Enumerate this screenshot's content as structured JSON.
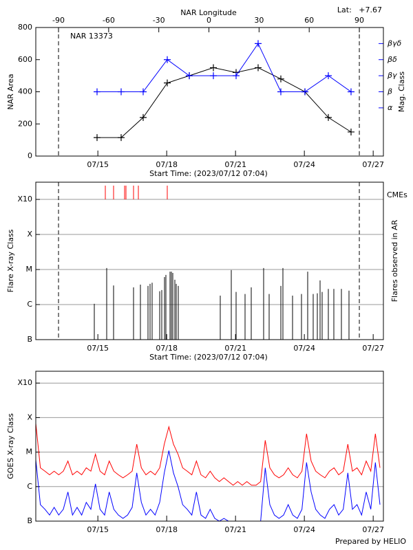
{
  "chart_data": [
    {
      "type": "line",
      "title": "NAR 13373",
      "annotation": "Lat:   +7.67",
      "xlabel": "Start Time: (2023/07/12 07:04)",
      "ylabel": "NAR Area",
      "y2label": "Mag. Class",
      "x2label": "NAR Longitude",
      "xlim": [
        0,
        15.15
      ],
      "xticks": [
        {
          "value": 2.705,
          "label": "07/15"
        },
        {
          "value": 5.705,
          "label": "07/18"
        },
        {
          "value": 8.705,
          "label": "07/21"
        },
        {
          "value": 11.705,
          "label": "07/24"
        },
        {
          "value": 14.705,
          "label": "07/27"
        }
      ],
      "x2lim": [
        -103.6,
        104.4
      ],
      "x2ticks": [
        -90,
        -60,
        -30,
        0,
        30,
        60,
        90
      ],
      "ylim": [
        0,
        800
      ],
      "yticks": [
        0,
        200,
        400,
        600,
        800
      ],
      "y2lim": [
        -2,
        6
      ],
      "y2ticks": [
        {
          "value": 1,
          "label": "α"
        },
        {
          "value": 2,
          "label": "β"
        },
        {
          "value": 3,
          "label": "βγ"
        },
        {
          "value": 4,
          "label": "βδ"
        },
        {
          "value": 5,
          "label": "βγδ"
        }
      ],
      "series": [
        {
          "color": "#000000",
          "x": [
            2.67,
            3.72,
            4.68,
            5.73,
            6.69,
            7.74,
            8.73,
            9.69,
            10.68,
            11.73,
            12.75,
            13.74
          ],
          "values": [
            115,
            115,
            240,
            455,
            500,
            550,
            520,
            550,
            480,
            400,
            240,
            150
          ]
        },
        {
          "color": "#0000ff",
          "axis": "y2",
          "x": [
            2.67,
            3.72,
            4.68,
            5.73,
            6.69,
            7.74,
            8.73,
            9.69,
            10.68,
            11.73,
            12.75,
            13.74
          ],
          "values": [
            2,
            2,
            2,
            4,
            3,
            3,
            3,
            5,
            2,
            2,
            3,
            2
          ]
        }
      ]
    },
    {
      "type": "flare",
      "xlabel": "Start Time: (2023/07/12 07:04)",
      "ylabel": "Flare X-ray Class",
      "y2label": "Flares observed in AR",
      "xlim": [
        0,
        15.15
      ],
      "xticks": [
        {
          "value": 2.705,
          "label": "07/15"
        },
        {
          "value": 5.705,
          "label": "07/18"
        },
        {
          "value": 8.705,
          "label": "07/21"
        },
        {
          "value": 11.705,
          "label": "07/24"
        },
        {
          "value": 14.705,
          "label": "07/27"
        }
      ],
      "log": true,
      "grid": true,
      "ylim": [
        1e-07,
        0.0031
      ],
      "yticks": [
        {
          "value": 1e-07,
          "label": "B"
        },
        {
          "value": 1e-06,
          "label": "C"
        },
        {
          "value": 1e-05,
          "label": "M"
        },
        {
          "value": 0.0001,
          "label": "X"
        },
        {
          "value": 0.001,
          "label": "X10"
        }
      ],
      "series": [
        {
          "color": "#000000",
          "x": [
            2.55,
            3.09,
            3.39,
            4.26,
            4.56,
            4.89,
            4.98,
            5.07,
            5.4,
            5.49,
            5.61,
            5.67,
            5.85,
            5.91,
            5.97,
            6.06,
            6.12,
            6.21,
            8.04,
            8.52,
            8.73,
            9.12,
            9.39,
            9.93,
            10.17,
            10.68,
            10.77,
            11.19,
            11.58,
            11.85,
            12.09,
            12.27,
            12.39,
            12.48,
            12.75,
            12.99,
            13.32,
            13.65
          ],
          "values": [
            1.05e-06,
            1.1e-05,
            3.5e-06,
            3.1e-06,
            3.7e-06,
            3.4e-06,
            3.9e-06,
            4.2e-06,
            2.4e-06,
            2.6e-06,
            6.1e-06,
            7e-06,
            8.7e-06,
            8.7e-06,
            8e-06,
            5.1e-06,
            3.9e-06,
            3.4e-06,
            1.8e-06,
            9.6e-06,
            2.3e-06,
            2e-06,
            3.1e-06,
            1.1e-05,
            2e-06,
            3.4e-06,
            1.1e-05,
            1.8e-06,
            2e-06,
            8.7e-06,
            2e-06,
            2.1e-06,
            4.9e-06,
            2.3e-06,
            2.8e-06,
            2.8e-06,
            2.8e-06,
            2.5e-06
          ]
        },
        {
          "name": "CMEs",
          "color": "#ff0000",
          "x": [
            3.03,
            3.39,
            3.87,
            3.93,
            4.26,
            4.47,
            5.73
          ]
        }
      ]
    },
    {
      "type": "goes",
      "ylabel": "GOES X-ray Class",
      "note": "Prepared by HELIO",
      "xlim": [
        0,
        15.15
      ],
      "xticks": [
        {
          "value": 2.705,
          "label": "07/15"
        },
        {
          "value": 5.705,
          "label": "07/18"
        },
        {
          "value": 8.705,
          "label": "07/21"
        },
        {
          "value": 11.705,
          "label": "07/24"
        },
        {
          "value": 14.705,
          "label": "07/27"
        }
      ],
      "log": true,
      "grid": true,
      "ylim": [
        1e-07,
        0.0022
      ],
      "yticks": [
        {
          "value": 1e-07,
          "label": "B"
        },
        {
          "value": 1e-06,
          "label": "C"
        },
        {
          "value": 1e-05,
          "label": "M"
        },
        {
          "value": 0.0001,
          "label": "X"
        },
        {
          "value": 0.001,
          "label": "X10"
        }
      ],
      "x": [
        0,
        0.2,
        0.4,
        0.6,
        0.8,
        1.0,
        1.2,
        1.4,
        1.6,
        1.8,
        2.0,
        2.2,
        2.4,
        2.6,
        2.8,
        3.0,
        3.2,
        3.4,
        3.6,
        3.8,
        4.0,
        4.2,
        4.4,
        4.6,
        4.8,
        5.0,
        5.2,
        5.4,
        5.6,
        5.8,
        6.0,
        6.2,
        6.4,
        6.6,
        6.8,
        7.0,
        7.2,
        7.4,
        7.6,
        7.8,
        8.0,
        8.2,
        8.4,
        8.6,
        8.8,
        9.0,
        9.2,
        9.4,
        9.6,
        9.8,
        10.0,
        10.2,
        10.4,
        10.6,
        10.8,
        11.0,
        11.2,
        11.4,
        11.6,
        11.8,
        12.0,
        12.2,
        12.4,
        12.6,
        12.8,
        13.0,
        13.2,
        13.4,
        13.6,
        13.8,
        14.0,
        14.2,
        14.4,
        14.6,
        14.8,
        15.0
      ],
      "series": [
        {
          "color": "#ff0000",
          "values": [
            6.8e-05,
            3.5e-06,
            2.8e-06,
            2.2e-06,
            2.8e-06,
            2.2e-06,
            2.8e-06,
            5.5e-06,
            2.2e-06,
            2.8e-06,
            2.2e-06,
            3.5e-06,
            2.8e-06,
            8.7e-06,
            2.8e-06,
            2.2e-06,
            5.5e-06,
            2.8e-06,
            2.2e-06,
            1.8e-06,
            2.2e-06,
            2.8e-06,
            1.7e-05,
            3.5e-06,
            2.2e-06,
            2.8e-06,
            2.2e-06,
            3.5e-06,
            1.7e-05,
            5.4e-05,
            1.7e-05,
            8.7e-06,
            3.5e-06,
            2.8e-06,
            2.2e-06,
            5.5e-06,
            2.2e-06,
            1.8e-06,
            2.8e-06,
            1.8e-06,
            1.4e-06,
            1.8e-06,
            1.4e-06,
            1.1e-06,
            1.4e-06,
            1.1e-06,
            1.4e-06,
            1.1e-06,
            1.1e-06,
            1.4e-06,
            2.2e-05,
            3.5e-06,
            2.2e-06,
            1.8e-06,
            2.2e-06,
            3.5e-06,
            2.2e-06,
            1.8e-06,
            2.8e-06,
            3.4e-05,
            5.5e-06,
            2.8e-06,
            2.2e-06,
            1.8e-06,
            2.8e-06,
            3.5e-06,
            2.2e-06,
            2.8e-06,
            1.7e-05,
            2.8e-06,
            3.5e-06,
            2.2e-06,
            5.5e-06,
            2.8e-06,
            3.4e-05,
            3.5e-06
          ]
        },
        {
          "color": "#0000ff",
          "values": [
            6e-06,
            3e-07,
            2.2e-07,
            1.5e-07,
            2.5e-07,
            1.5e-07,
            2.2e-07,
            7e-07,
            1.5e-07,
            2.5e-07,
            1.5e-07,
            3.5e-07,
            2.2e-07,
            1.2e-06,
            2.2e-07,
            1.5e-07,
            7e-07,
            2.2e-07,
            1.5e-07,
            1.2e-07,
            1.5e-07,
            2.5e-07,
            2.5e-06,
            3.5e-07,
            1.5e-07,
            2.2e-07,
            1.5e-07,
            3.5e-07,
            2.5e-06,
            1.1e-05,
            2.5e-06,
            1e-06,
            3e-07,
            2.2e-07,
            1.5e-07,
            7e-07,
            1.5e-07,
            1.2e-07,
            2.2e-07,
            1.2e-07,
            1e-07,
            1.2e-07,
            1e-07,
            1e-07,
            1e-07,
            1e-07,
            1e-07,
            1e-07,
            1e-07,
            1e-07,
            3.5e-06,
            3e-07,
            1.5e-07,
            1.2e-07,
            1.5e-07,
            3e-07,
            1.5e-07,
            1.2e-07,
            2.2e-07,
            5e-06,
            7e-07,
            2.2e-07,
            1.5e-07,
            1.2e-07,
            2.2e-07,
            3e-07,
            1.5e-07,
            2.2e-07,
            2.5e-06,
            2.2e-07,
            3e-07,
            1.5e-07,
            7e-07,
            2.2e-07,
            5e-06,
            3e-07
          ]
        }
      ]
    }
  ]
}
